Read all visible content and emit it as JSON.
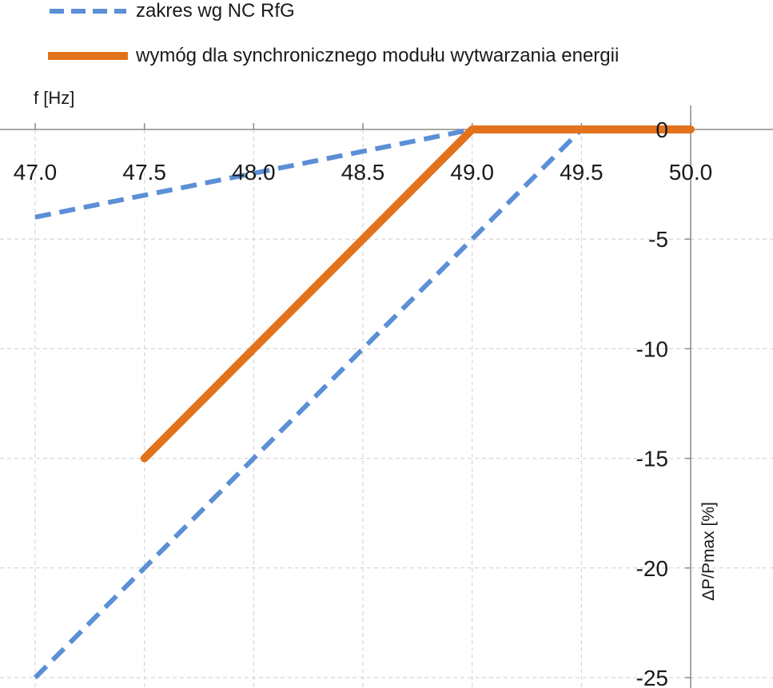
{
  "chart_data": {
    "type": "line",
    "xlabel": "f [Hz]",
    "ylabel": "ΔP/Pmax [%]",
    "xlim": [
      47.0,
      50.0
    ],
    "ylim": [
      -25,
      0
    ],
    "x_ticks": [
      "47.0",
      "47.5",
      "48.0",
      "48.5",
      "49.0",
      "49.5",
      "50.0"
    ],
    "y_ticks": [
      "0",
      "-5",
      "-10",
      "-15",
      "-20",
      "-25"
    ],
    "grid": true,
    "legend_position": "top-left",
    "series": [
      {
        "name": "zakres wg NC RfG",
        "style": "dashed",
        "color": "#5b8fd6",
        "segments": [
          [
            [
              47.0,
              -4.0
            ],
            [
              49.0,
              0.0
            ]
          ],
          [
            [
              47.0,
              -25.0
            ],
            [
              49.5,
              0.0
            ]
          ]
        ]
      },
      {
        "name": "wymóg dla synchronicznego modułu wytwarzania energii",
        "style": "solid",
        "color": "#e2721b",
        "points": [
          [
            47.5,
            -15.0
          ],
          [
            49.0,
            0.0
          ],
          [
            50.0,
            0.0
          ]
        ]
      }
    ]
  }
}
